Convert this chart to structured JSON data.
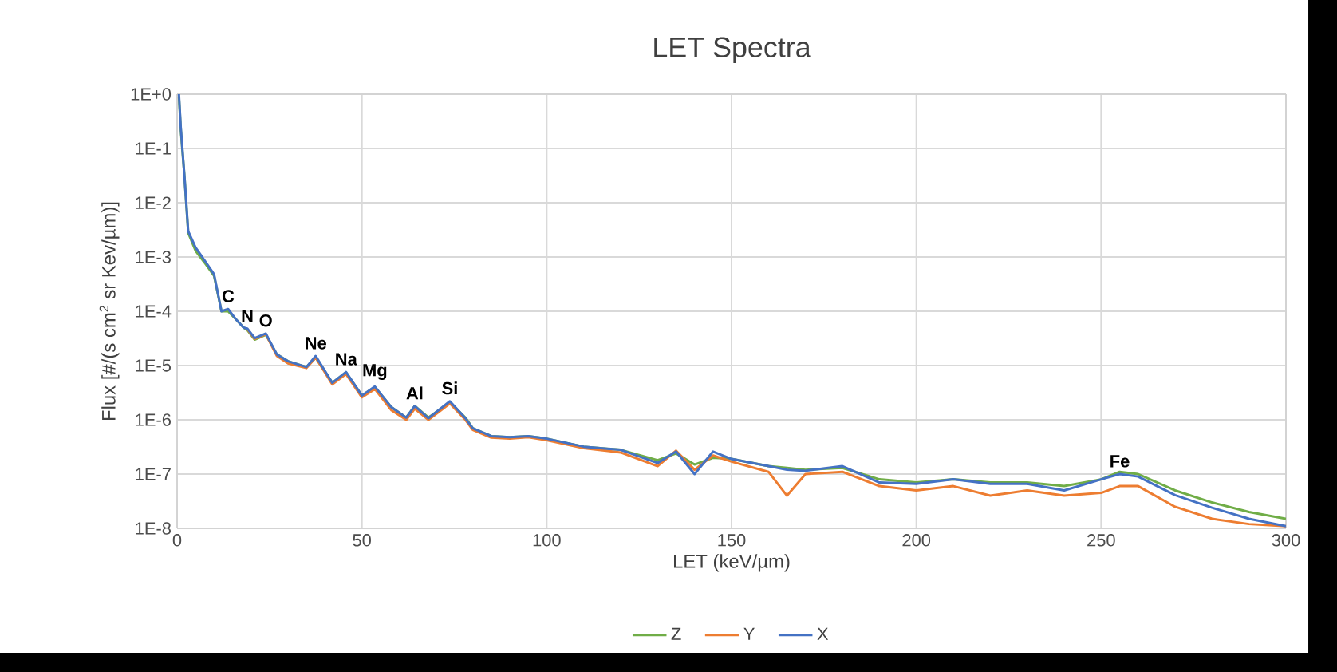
{
  "chart_data": {
    "type": "line",
    "title": "LET Spectra",
    "xlabel": "LET (keV/µm)",
    "ylabel": "Flux [#/(s cm$^{2}$ sr Kev/µm)]",
    "log": "y",
    "grid": true,
    "legend": "bottom",
    "line_style": "solid",
    "marker": "none",
    "xlim": [
      0,
      300
    ],
    "xticks": [
      0,
      50,
      100,
      150,
      200,
      250,
      300
    ],
    "ylim": [
      1e-08,
      1
    ],
    "yticks": [
      {
        "value": 1e-08,
        "label": "1E-8"
      },
      {
        "value": 1e-07,
        "label": "1E-7"
      },
      {
        "value": 1e-06,
        "label": "1E-6"
      },
      {
        "value": 1e-05,
        "label": "1E-5"
      },
      {
        "value": 0.0001,
        "label": "1E-4"
      },
      {
        "value": 0.001,
        "label": "1E-3"
      },
      {
        "value": 0.01,
        "label": "1E-2"
      },
      {
        "value": 0.1,
        "label": "1E-1"
      },
      {
        "value": 1,
        "label": "1E+0"
      }
    ],
    "x": [
      0.5,
      1,
      2,
      3,
      5,
      8,
      10,
      12,
      13.8,
      16,
      18,
      19,
      21,
      24,
      27,
      30,
      35,
      37.5,
      42,
      45.7,
      50,
      53.5,
      58,
      62,
      64.3,
      68,
      73.8,
      78,
      80,
      85,
      90,
      95,
      100,
      110,
      120,
      130,
      135,
      140,
      145,
      150,
      160,
      165,
      170,
      180,
      190,
      200,
      210,
      220,
      230,
      240,
      250,
      255,
      260,
      270,
      280,
      290,
      300
    ],
    "series": [
      {
        "name": "Z",
        "color": "#70ad47",
        "values": [
          0.9,
          0.22,
          0.03,
          0.0028,
          0.0013,
          0.0007,
          0.00045,
          0.0001,
          0.0001,
          7e-05,
          5e-05,
          4.5e-05,
          3e-05,
          3.7e-05,
          1.6e-05,
          1.2e-05,
          9.4e-06,
          1.4e-05,
          4.8e-06,
          7.5e-06,
          2.8e-06,
          4e-06,
          1.7e-06,
          1.1e-06,
          1.8e-06,
          1.1e-06,
          2.1e-06,
          1.1e-06,
          7e-07,
          5e-07,
          4.8e-07,
          5e-07,
          4.5e-07,
          3.2e-07,
          2.8e-07,
          1.8e-07,
          2.4e-07,
          1.5e-07,
          2e-07,
          1.9e-07,
          1.4e-07,
          1.3e-07,
          1.2e-07,
          1.3e-07,
          8e-08,
          7e-08,
          8e-08,
          7e-08,
          7e-08,
          6e-08,
          8e-08,
          1.1e-07,
          1e-07,
          5e-08,
          3e-08,
          2e-08,
          1.5e-08
        ]
      },
      {
        "name": "Y",
        "color": "#ed7d31",
        "values": [
          null,
          null,
          null,
          null,
          null,
          null,
          null,
          null,
          null,
          null,
          null,
          4.7e-05,
          3.1e-05,
          3.8e-05,
          1.5e-05,
          1.1e-05,
          9e-06,
          1.4e-05,
          4.5e-06,
          7e-06,
          2.6e-06,
          3.7e-06,
          1.5e-06,
          1e-06,
          1.6e-06,
          1e-06,
          2e-06,
          1e-06,
          6.5e-07,
          4.7e-07,
          4.5e-07,
          4.8e-07,
          4.2e-07,
          3e-07,
          2.5e-07,
          1.4e-07,
          2.7e-07,
          1.2e-07,
          2.2e-07,
          1.7e-07,
          1.1e-07,
          4e-08,
          1e-07,
          1.1e-07,
          6e-08,
          5e-08,
          6e-08,
          4e-08,
          5e-08,
          4e-08,
          4.5e-08,
          6e-08,
          6e-08,
          2.5e-08,
          1.5e-08,
          1.2e-08,
          1.1e-08
        ]
      },
      {
        "name": "X",
        "color": "#4472c4",
        "values": [
          1,
          0.24,
          0.03,
          0.003,
          0.0015,
          0.00076,
          0.00048,
          0.0001,
          0.00011,
          7e-05,
          5e-05,
          4.8e-05,
          3.2e-05,
          3.9e-05,
          1.6e-05,
          1.2e-05,
          9.4e-06,
          1.5e-05,
          4.8e-06,
          7.6e-06,
          2.8e-06,
          4.1e-06,
          1.7e-06,
          1.1e-06,
          1.8e-06,
          1.07e-06,
          2.2e-06,
          1.07e-06,
          7e-07,
          5e-07,
          4.8e-07,
          5e-07,
          4.5e-07,
          3.2e-07,
          2.8e-07,
          1.6e-07,
          2.6e-07,
          1e-07,
          2.6e-07,
          1.9e-07,
          1.4e-07,
          1.2e-07,
          1.15e-07,
          1.4e-07,
          7e-08,
          6.6e-08,
          8e-08,
          6.6e-08,
          6.6e-08,
          5e-08,
          8e-08,
          1e-07,
          9e-08,
          4.1e-08,
          2.4e-08,
          1.5e-08,
          1.1e-08
        ]
      }
    ],
    "annotations": [
      {
        "text": "C",
        "x": 13.8,
        "y": 0.00011
      },
      {
        "text": "N",
        "x": 19,
        "y": 4.8e-05
      },
      {
        "text": "O",
        "x": 24,
        "y": 3.9e-05
      },
      {
        "text": "Ne",
        "x": 37.5,
        "y": 1.5e-05
      },
      {
        "text": "Na",
        "x": 45.7,
        "y": 7.6e-06
      },
      {
        "text": "Mg",
        "x": 53.5,
        "y": 4.1e-06
      },
      {
        "text": "Al",
        "x": 64.3,
        "y": 1.8e-06
      },
      {
        "text": "Si",
        "x": 73.8,
        "y": 2.2e-06
      },
      {
        "text": "Fe",
        "x": 255,
        "y": 1e-07
      }
    ]
  }
}
